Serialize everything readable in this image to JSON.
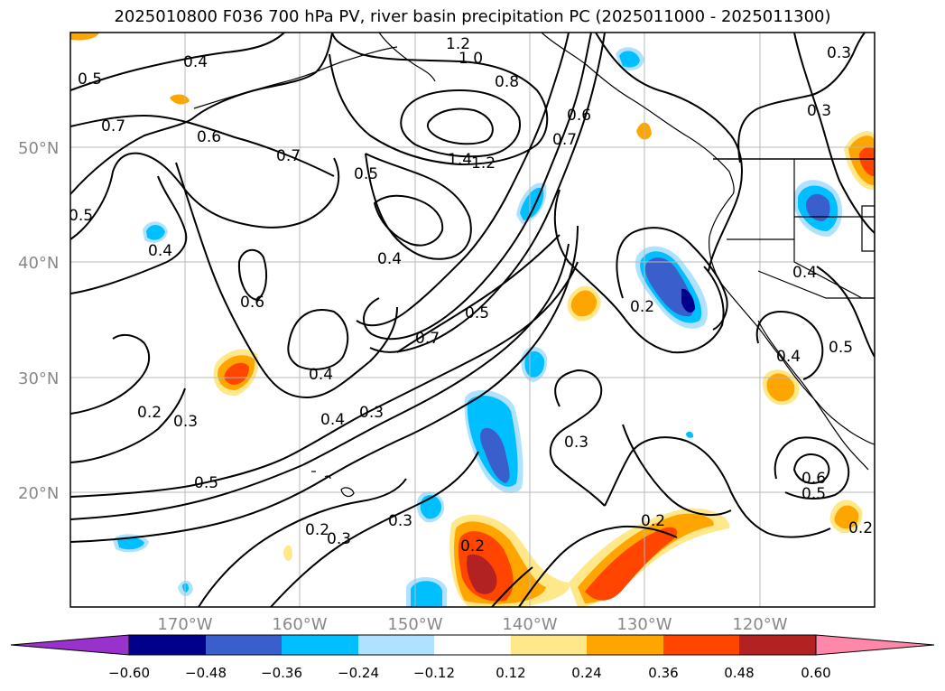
{
  "title": "2025010800 F036 700 hPa PV, river basin precipitation PC (2025011000 - 2025011300)",
  "map": {
    "lon_range": [
      -180,
      -110
    ],
    "lat_range": [
      10,
      60
    ],
    "lat_labels": [
      "50°N",
      "40°N",
      "30°N",
      "20°N"
    ],
    "lat_values": [
      50,
      40,
      30,
      20
    ],
    "lon_labels": [
      "170°W",
      "160°W",
      "150°W",
      "140°W",
      "130°W",
      "120°W"
    ],
    "lon_values": [
      -170,
      -160,
      -150,
      -140,
      -130,
      -120
    ],
    "grid": true,
    "contour_labels": [
      "0.4",
      "1.2",
      "1.0",
      "0.3",
      "0.5",
      "0.8",
      "0.7",
      "0.6",
      "0.3",
      "0.7",
      "0.6",
      "0.7",
      "0.5",
      "1.4",
      "1.2",
      "0.5",
      "0.4",
      "0.4",
      "0.6",
      "0.2",
      "0.4",
      "0.5",
      "0.7",
      "0.4",
      "0.2",
      "0.3",
      "0.4",
      "0.3",
      "0.5",
      "0.3",
      "0.2",
      "0.3",
      "0.2",
      "0.3",
      "0.2",
      "0.6",
      "0.5",
      "0.2",
      "0.5",
      "0.4"
    ]
  },
  "colorbar": {
    "tick_labels": [
      "−0.60",
      "−0.48",
      "−0.36",
      "−0.24",
      "−0.12",
      "0.12",
      "0.24",
      "0.36",
      "0.48",
      "0.60"
    ],
    "colors": [
      "#9932CC",
      "#00008B",
      "#3A5FCD",
      "#00BFFF",
      "#B0E2FF",
      "#FFFFFF",
      "#FFE88A",
      "#FFA500",
      "#FF4500",
      "#B22222",
      "#FF88AA"
    ]
  }
}
